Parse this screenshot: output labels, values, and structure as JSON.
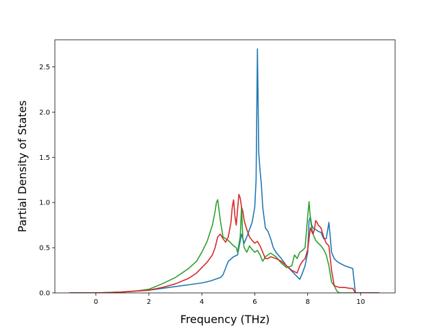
{
  "chart_data": {
    "type": "line",
    "title": "",
    "xlabel": "Frequency (THz)",
    "ylabel": "Partial Density of States",
    "xlim": [
      -1.55,
      11.3
    ],
    "ylim": [
      0,
      2.8
    ],
    "xticks": [
      0,
      2,
      4,
      6,
      8,
      10
    ],
    "yticks": [
      0.0,
      0.5,
      1.0,
      1.5,
      2.0,
      2.5
    ],
    "xtick_labels": [
      "0",
      "2",
      "4",
      "6",
      "8",
      "10"
    ],
    "ytick_labels": [
      "0.0",
      "0.5",
      "1.0",
      "1.5",
      "2.0",
      "2.5"
    ],
    "grid": false,
    "series": [
      {
        "color": "#1f77b4",
        "x": [
          -1.0,
          0.0,
          0.5,
          1.0,
          1.5,
          2.0,
          2.5,
          3.0,
          3.5,
          4.0,
          4.3,
          4.5,
          4.6,
          4.7,
          4.8,
          5.0,
          5.2,
          5.35,
          5.5,
          5.6,
          5.7,
          5.8,
          5.9,
          6.0,
          6.05,
          6.1,
          6.15,
          6.2,
          6.25,
          6.3,
          6.4,
          6.5,
          6.6,
          6.7,
          6.8,
          7.0,
          7.2,
          7.4,
          7.6,
          7.7,
          7.8,
          7.9,
          8.0,
          8.05,
          8.1,
          8.15,
          8.2,
          8.3,
          8.4,
          8.5,
          8.6,
          8.7,
          8.8,
          8.85,
          8.9,
          9.0,
          9.1,
          9.2,
          9.4,
          9.6,
          9.7,
          9.8,
          10.7
        ],
        "y": [
          0.0,
          0.0,
          0.003,
          0.01,
          0.02,
          0.03,
          0.05,
          0.07,
          0.09,
          0.11,
          0.13,
          0.15,
          0.16,
          0.17,
          0.2,
          0.35,
          0.4,
          0.42,
          0.65,
          0.55,
          0.62,
          0.7,
          0.78,
          0.95,
          1.25,
          2.7,
          1.55,
          1.35,
          1.2,
          0.95,
          0.72,
          0.68,
          0.6,
          0.5,
          0.45,
          0.38,
          0.3,
          0.24,
          0.18,
          0.15,
          0.22,
          0.3,
          0.45,
          0.8,
          0.84,
          0.75,
          0.72,
          0.7,
          0.68,
          0.67,
          0.6,
          0.6,
          0.78,
          0.62,
          0.45,
          0.38,
          0.35,
          0.33,
          0.3,
          0.28,
          0.27,
          0.0,
          0.0
        ]
      },
      {
        "color": "#2ca02c",
        "x": [
          -1.0,
          0.0,
          0.5,
          1.0,
          1.5,
          2.0,
          2.5,
          3.0,
          3.5,
          3.8,
          4.0,
          4.2,
          4.4,
          4.5,
          4.55,
          4.6,
          4.7,
          4.8,
          5.0,
          5.2,
          5.3,
          5.35,
          5.45,
          5.5,
          5.55,
          5.6,
          5.7,
          5.8,
          5.9,
          6.0,
          6.1,
          6.2,
          6.3,
          6.4,
          6.5,
          6.6,
          6.7,
          6.8,
          7.0,
          7.2,
          7.4,
          7.5,
          7.6,
          7.7,
          7.8,
          7.9,
          8.0,
          8.05,
          8.1,
          8.15,
          8.2,
          8.3,
          8.4,
          8.5,
          8.6,
          8.7,
          8.8,
          8.9,
          9.0,
          9.1,
          9.2,
          9.4,
          9.6,
          9.8,
          10.7
        ],
        "y": [
          0.0,
          0.0,
          0.005,
          0.01,
          0.02,
          0.04,
          0.1,
          0.17,
          0.27,
          0.35,
          0.45,
          0.57,
          0.75,
          0.9,
          1.0,
          1.03,
          0.8,
          0.62,
          0.58,
          0.52,
          0.5,
          0.45,
          0.62,
          0.95,
          0.6,
          0.5,
          0.45,
          0.52,
          0.48,
          0.45,
          0.47,
          0.42,
          0.35,
          0.4,
          0.42,
          0.44,
          0.42,
          0.4,
          0.33,
          0.28,
          0.3,
          0.42,
          0.38,
          0.45,
          0.47,
          0.5,
          0.85,
          1.01,
          0.82,
          0.72,
          0.65,
          0.58,
          0.55,
          0.52,
          0.48,
          0.42,
          0.3,
          0.12,
          0.08,
          0.02,
          0.0,
          0.0,
          0.0,
          0.0,
          0.0
        ]
      },
      {
        "color": "#d62728",
        "x": [
          -1.0,
          0.0,
          0.5,
          1.0,
          1.5,
          2.0,
          2.5,
          3.0,
          3.5,
          3.8,
          4.0,
          4.2,
          4.4,
          4.5,
          4.6,
          4.7,
          4.8,
          4.9,
          5.0,
          5.1,
          5.15,
          5.2,
          5.25,
          5.3,
          5.35,
          5.4,
          5.45,
          5.5,
          5.55,
          5.6,
          5.7,
          5.8,
          5.9,
          6.0,
          6.1,
          6.2,
          6.3,
          6.4,
          6.5,
          6.6,
          6.8,
          7.0,
          7.2,
          7.4,
          7.6,
          7.7,
          7.8,
          7.9,
          8.0,
          8.1,
          8.15,
          8.2,
          8.25,
          8.3,
          8.35,
          8.4,
          8.5,
          8.6,
          8.7,
          8.8,
          8.9,
          9.0,
          9.2,
          9.4,
          9.6,
          9.7,
          9.8,
          10.7
        ],
        "y": [
          0.0,
          0.0,
          0.003,
          0.01,
          0.02,
          0.03,
          0.06,
          0.1,
          0.16,
          0.22,
          0.28,
          0.34,
          0.42,
          0.5,
          0.62,
          0.65,
          0.6,
          0.56,
          0.62,
          0.78,
          0.95,
          1.03,
          0.85,
          0.75,
          0.92,
          1.09,
          1.05,
          0.95,
          0.9,
          0.8,
          0.7,
          0.62,
          0.58,
          0.55,
          0.57,
          0.52,
          0.45,
          0.38,
          0.38,
          0.4,
          0.38,
          0.35,
          0.3,
          0.25,
          0.22,
          0.3,
          0.35,
          0.38,
          0.48,
          0.72,
          0.68,
          0.65,
          0.7,
          0.8,
          0.78,
          0.75,
          0.72,
          0.62,
          0.55,
          0.52,
          0.25,
          0.08,
          0.06,
          0.06,
          0.05,
          0.05,
          0.0,
          0.0
        ]
      }
    ]
  }
}
